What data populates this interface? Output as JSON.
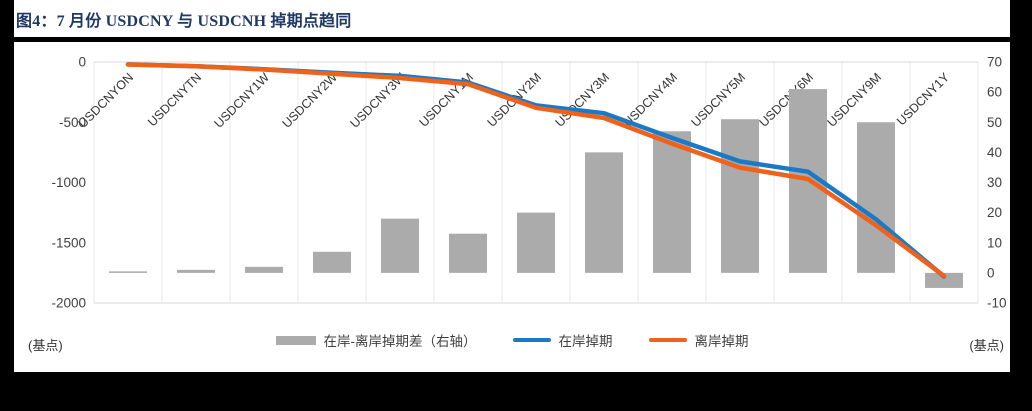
{
  "page": {
    "title": "图4：7 月份 USDCNY 与 USDCNH 掉期点趋同",
    "title_color": "#1f3864",
    "background_color": "#000000",
    "panel_color": "#ffffff"
  },
  "chart_data": {
    "type": "bar",
    "subtype": "combo-bar-line",
    "title": "图4：7 月份 USDCNY 与 USDCNH 掉期点趋同",
    "categories": [
      "USDCNYON",
      "USDCNYTN",
      "USDCNY1W",
      "USDCNY2W",
      "USDCNY3W",
      "USDCNY1M",
      "USDCNY2M",
      "USDCNY3M",
      "USDCNY4M",
      "USDCNY5M",
      "USDCNY6M",
      "USDCNY9M",
      "USDCNY1Y"
    ],
    "series": [
      {
        "name": "在岸-离岸掉期差（右轴）",
        "type": "bar",
        "axis": "right",
        "color": "#ababab",
        "values": [
          0.5,
          1,
          2,
          7,
          18,
          13,
          20,
          40,
          47,
          51,
          61,
          50,
          -5
        ]
      },
      {
        "name": "在岸掉期",
        "type": "line",
        "axis": "left",
        "color": "#1b7ac6",
        "values": [
          -20,
          -35,
          -60,
          -90,
          -115,
          -170,
          -360,
          -425,
          -630,
          -825,
          -910,
          -1305,
          -1780
        ]
      },
      {
        "name": "离岸掉期",
        "type": "line",
        "axis": "left",
        "color": "#f0611a",
        "values": [
          -21,
          -36,
          -62,
          -97,
          -133,
          -183,
          -380,
          -465,
          -677,
          -876,
          -971,
          -1355,
          -1775
        ]
      }
    ],
    "left_axis": {
      "label": "(基点)",
      "min": -2000,
      "max": 0,
      "ticks": [
        0,
        -500,
        -1000,
        -1500,
        -2000
      ]
    },
    "right_axis": {
      "label": "(基点)",
      "min": -10,
      "max": 70,
      "ticks": [
        70,
        60,
        50,
        40,
        30,
        20,
        10,
        0,
        -10
      ]
    },
    "legend_position": "bottom",
    "grid": "vertical-only",
    "gridline_color": "#e9e9e9",
    "axisline_color": "#d9d9d9",
    "tick_color": "#404040"
  }
}
